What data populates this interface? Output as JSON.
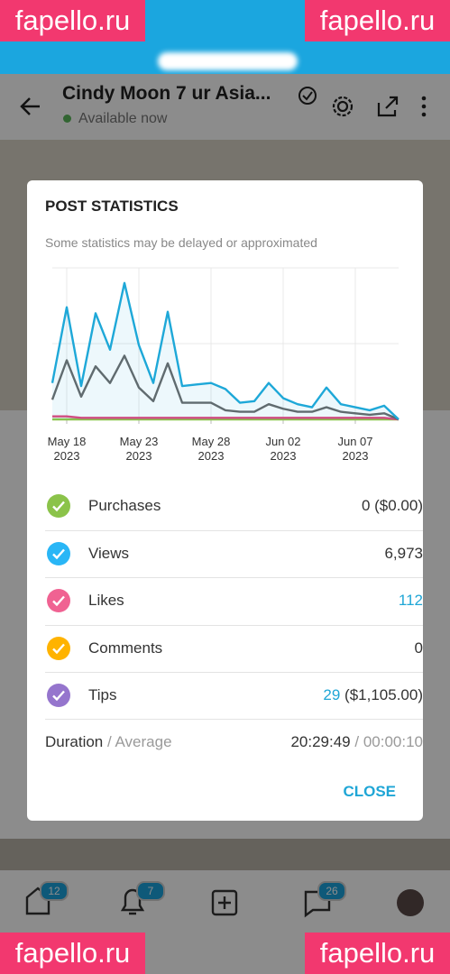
{
  "watermark": "fapello.ru",
  "header": {
    "title": "Cindy Moon 7 ur Asia...",
    "status": "Available now"
  },
  "modal": {
    "title": "POST STATISTICS",
    "note": "Some statistics may be delayed or approximated",
    "rows": [
      {
        "label": "Purchases",
        "value": "0 ($0.00)"
      },
      {
        "label": "Views",
        "value": "6,973"
      },
      {
        "label": "Likes",
        "value": "112"
      },
      {
        "label": "Comments",
        "value": "0"
      },
      {
        "label": "Tips",
        "value": "29",
        "detail": "($1,105.00)"
      }
    ],
    "duration": {
      "label": "Duration",
      "sublabel": "/ Average",
      "value": "20:29:49",
      "subvalue": "/ 00:00:10"
    },
    "close": "CLOSE"
  },
  "chart_data": {
    "type": "line",
    "categories": [
      null,
      "May 18\n2023",
      null,
      null,
      null,
      null,
      "May 23\n2023",
      null,
      null,
      null,
      null,
      "May 28\n2023",
      null,
      null,
      null,
      null,
      "Jun 02\n2023",
      null,
      null,
      null,
      null,
      "Jun 07\n2023",
      null,
      null,
      null
    ],
    "series": [
      {
        "color": "#1ea8d8",
        "values": [
          24,
          74,
          22,
          70,
          46,
          90,
          49,
          24,
          71,
          22,
          23,
          24,
          20,
          11,
          12,
          24,
          14,
          10,
          8,
          21,
          10,
          8,
          6,
          9,
          0
        ]
      },
      {
        "color": "#666666",
        "values": [
          13,
          39,
          15,
          35,
          24,
          42,
          21,
          12,
          37,
          11,
          11,
          11,
          6,
          5,
          5,
          10,
          7,
          5,
          5,
          8,
          5,
          4,
          3,
          4,
          0
        ]
      },
      {
        "color": "#e0457b",
        "values": [
          2,
          2,
          1,
          1,
          1,
          1,
          1,
          1,
          1,
          1,
          1,
          1,
          1,
          1,
          1,
          1,
          1,
          1,
          1,
          1,
          1,
          1,
          1,
          1,
          0
        ]
      },
      {
        "color": "#8bc34a",
        "values": [
          0,
          0,
          0,
          0,
          0,
          0,
          0,
          0,
          0,
          0,
          0,
          0,
          0,
          0,
          0,
          0,
          0,
          0,
          0,
          0,
          0,
          0,
          0,
          0,
          0
        ]
      }
    ],
    "ylim": [
      0,
      100
    ],
    "yticks": [
      0,
      50,
      100
    ],
    "grid": true
  },
  "nav": {
    "badges": [
      "12",
      "7",
      "26"
    ]
  }
}
